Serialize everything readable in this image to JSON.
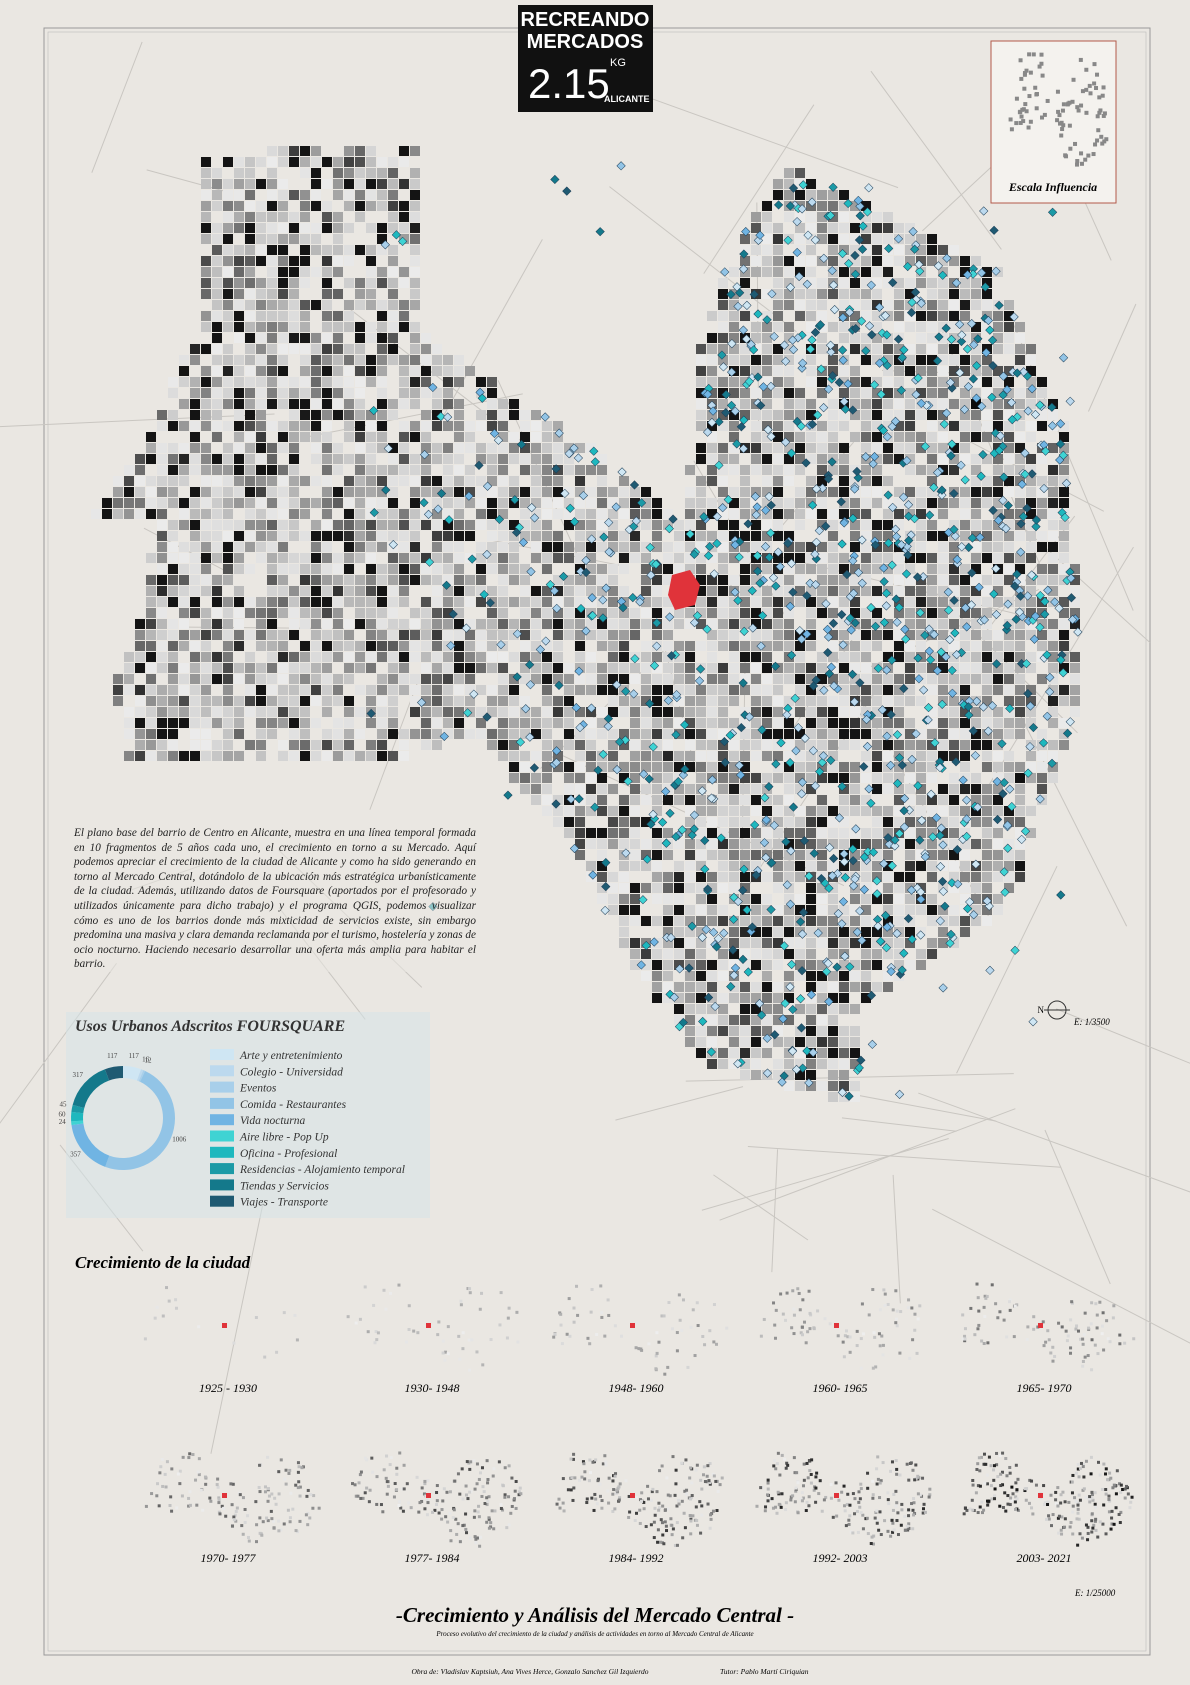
{
  "header": {
    "line1": "RECREANDO",
    "line2": "MERCADOS",
    "code": "2.15",
    "unit": "KG",
    "city": "ALICANTE"
  },
  "inset": {
    "label": "Escala Influencia"
  },
  "map": {
    "north": "N",
    "scale": "E: 1/3500"
  },
  "description": "El plano base del barrio de Centro en Alicante, muestra en una línea temporal formada en 10 fragmentos de 5 años cada uno, el crecimiento en torno a su Mercado. Aquí podemos apreciar el crecimiento de la ciudad de Alicante y como ha sido generando en torno al Mercado Central, dotándolo de la ubicación más estratégica urbanísticamente de la ciudad. Además, utilizando datos de Foursquare (aportados por el profesorado y utilizados únicamente para dicho trabajo) y el programa QGIS, podemos visualizar cómo es uno de los barrios donde más mixticidad de servicios existe, sin embargo predomina una masiva y clara demanda reclamanda por el turismo, hostelería y zonas de ocio nocturno. Haciendo necesario desarrollar una oferta más amplia para habitar el barrio.",
  "usos": {
    "title": "Usos Urbanos Adscritos FOURSQUARE",
    "categories": [
      "Arte y entretenimiento",
      "Colegio - Universidad",
      "Eventos",
      "Comida - Restaurantes",
      "Vida nocturna",
      "Aire libre - Pop Up",
      "Oficina - Profesional",
      "Residencias - Alojamiento temporal",
      "Tiendas y Servicios",
      "Viajes - Transporte"
    ],
    "colors": [
      "#cfe6f3",
      "#bcd9ee",
      "#a8cfea",
      "#92c4e6",
      "#70b4e3",
      "#3fd3d3",
      "#1eb8be",
      "#1b9aa6",
      "#14798b",
      "#1f5a72"
    ],
    "values": [
      117,
      16,
      12,
      1006,
      357,
      24,
      60,
      45,
      317,
      117
    ]
  },
  "growth": {
    "title": "Crecimiento de la ciudad",
    "periods": [
      "1925 - 1930",
      "1930- 1948",
      "1948- 1960",
      "1960- 1965",
      "1965- 1970",
      "1970- 1977",
      "1977- 1984",
      "1984- 1992",
      "1992- 2003",
      "2003- 2021"
    ],
    "scale": "E: 1/25000"
  },
  "footer": {
    "title": "-Crecimiento y Análisis del Mercado Central -",
    "subtitle": "Proceso evolutivo del crecimiento de la ciudad y análisis de actividades en torno al Mercado Central de Alicante",
    "authors": "Obra de: Vladislav Kaptsiuh, Ana Vives Herce, Gonzalo Sanchez Gil Izquierdo",
    "tutor": "Tutor: Pablo Martí Ciriquian"
  }
}
